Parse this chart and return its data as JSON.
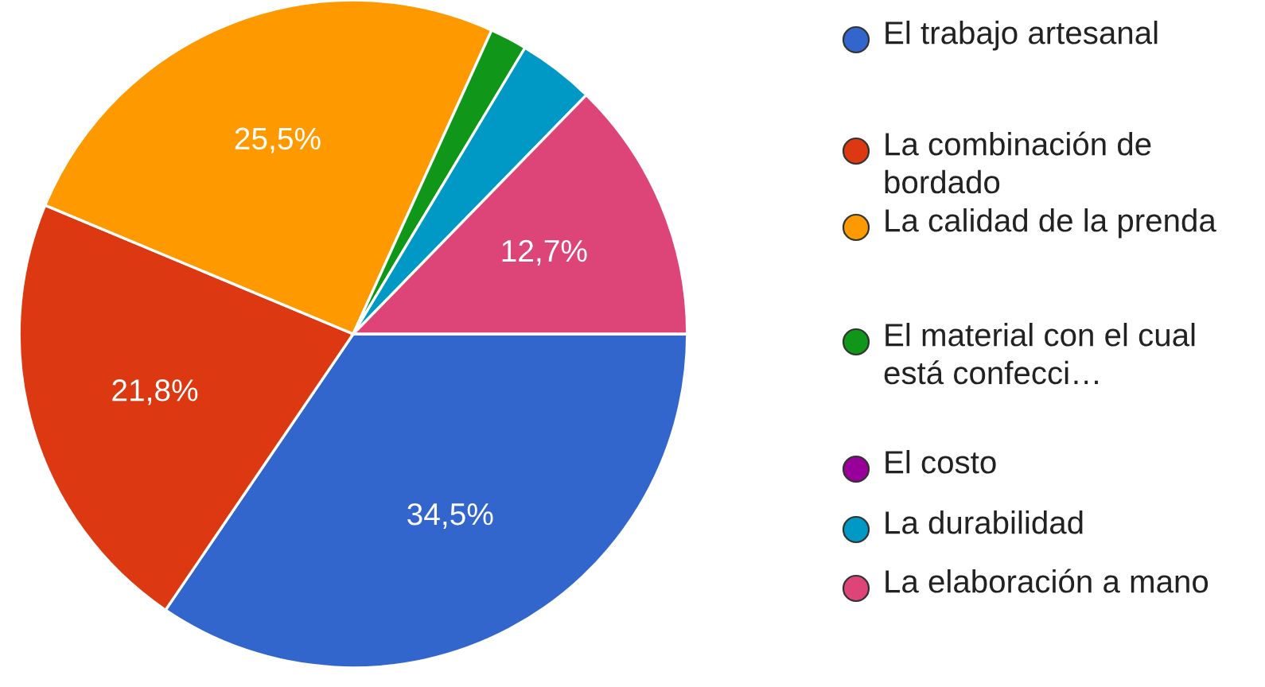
{
  "chart_data": {
    "type": "pie",
    "categories": [
      "El trabajo artesanal",
      "La combinación de bordado",
      "La calidad de la prenda",
      "El material con el cual está confecci…",
      "El costo",
      "La durabilidad",
      "La elaboración a mano"
    ],
    "values": [
      34.5,
      21.8,
      25.5,
      1.8,
      0,
      3.7,
      12.7
    ],
    "colors": [
      "#3366cc",
      "#dc3912",
      "#ff9900",
      "#109618",
      "#990099",
      "#0099c6",
      "#dd4477"
    ],
    "value_labels": [
      "34,5%",
      "21,8%",
      "25,5%",
      null,
      null,
      null,
      "12,7%"
    ],
    "legend": "right"
  }
}
